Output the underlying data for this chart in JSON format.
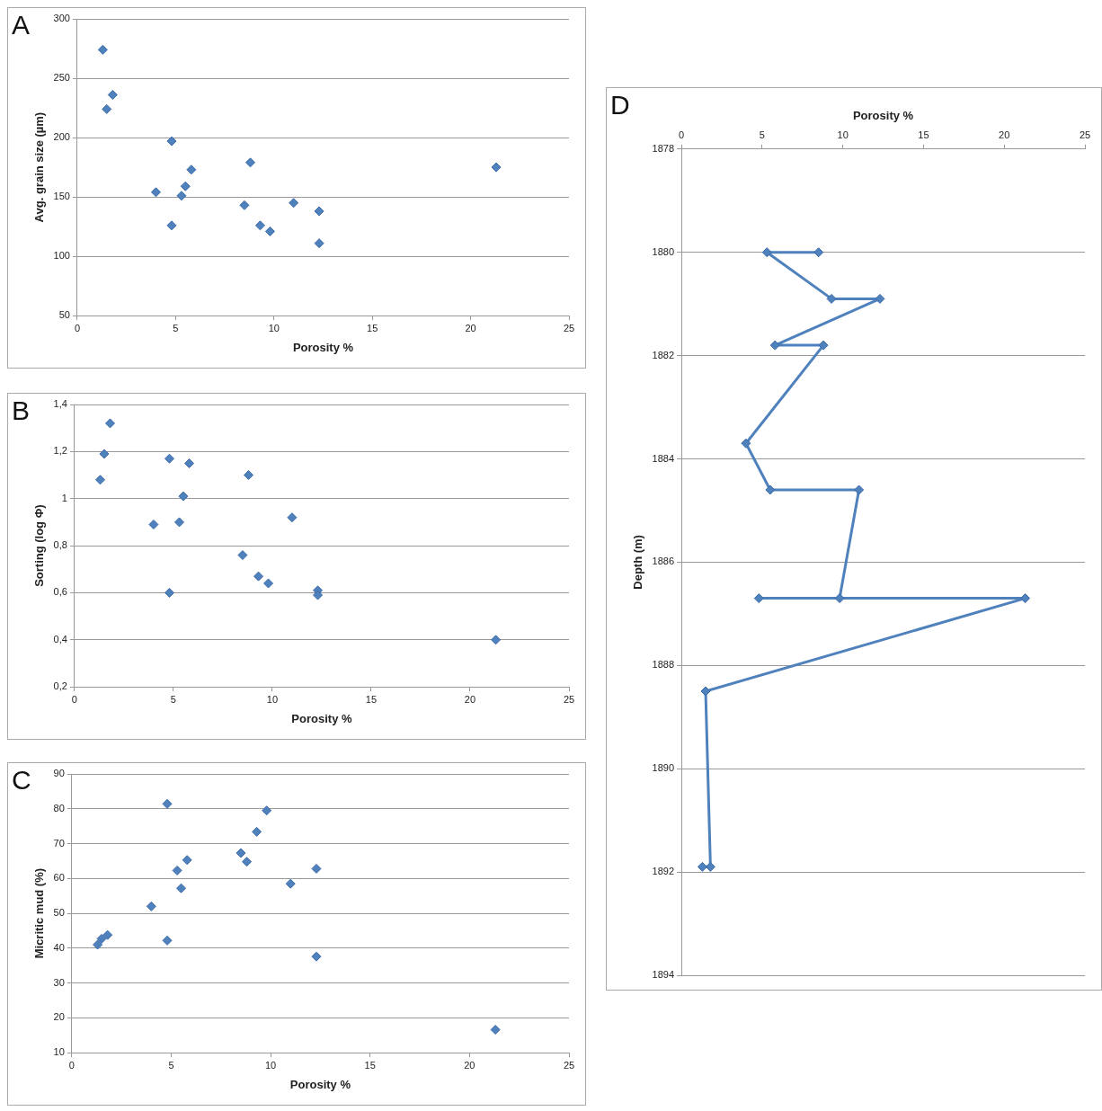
{
  "chart_data": [
    {
      "type": "scatter",
      "annotations": [
        "A"
      ],
      "xlabel": "Porosity %",
      "ylabel": "Avg. grain size (µm)",
      "xlim": [
        0,
        25
      ],
      "xticks": [
        0,
        5,
        10,
        15,
        20,
        25
      ],
      "ylim": [
        50,
        300
      ],
      "yticks": [
        50,
        100,
        150,
        200,
        250,
        300
      ],
      "grid": "y",
      "marker": "diamond",
      "series": [
        {
          "color": "#4f81bd",
          "x": [
            1.3,
            1.8,
            1.5,
            4.8,
            8.8,
            21.3,
            5.8,
            5.5,
            4.0,
            5.3,
            8.5,
            11.0,
            12.3,
            4.8,
            9.3,
            9.8,
            12.3
          ],
          "values": [
            274,
            236,
            224,
            197,
            179,
            175,
            173,
            159,
            154,
            151,
            143,
            145,
            138,
            126,
            126,
            121,
            111
          ]
        }
      ]
    },
    {
      "type": "scatter",
      "annotations": [
        "B"
      ],
      "xlabel": "Porosity %",
      "ylabel": "Sorting (log Φ)",
      "xlim": [
        0,
        25
      ],
      "xticks": [
        0,
        5,
        10,
        15,
        20,
        25
      ],
      "ylim": [
        0.2,
        1.4
      ],
      "yticks": [
        {
          "value": 0.2,
          "label": "0,2"
        },
        {
          "value": 0.4,
          "label": "0,4"
        },
        {
          "value": 0.6,
          "label": "0,6"
        },
        {
          "value": 0.8,
          "label": "0,8"
        },
        1,
        {
          "value": 1.2,
          "label": "1,2"
        },
        {
          "value": 1.4,
          "label": "1,4"
        }
      ],
      "grid": "y",
      "marker": "diamond",
      "series": [
        {
          "color": "#4f81bd",
          "x": [
            1.8,
            1.5,
            1.3,
            4.8,
            5.8,
            8.8,
            5.5,
            5.3,
            4.0,
            11.0,
            8.5,
            9.3,
            9.8,
            4.8,
            12.3,
            12.3,
            21.3
          ],
          "values": [
            1.32,
            1.19,
            1.08,
            1.17,
            1.15,
            1.1,
            1.01,
            0.9,
            0.89,
            0.92,
            0.76,
            0.67,
            0.64,
            0.6,
            0.61,
            0.59,
            0.4
          ]
        }
      ]
    },
    {
      "type": "scatter",
      "annotations": [
        "C"
      ],
      "xlabel": "Porosity %",
      "ylabel": "Micritic mud (%)",
      "xlim": [
        0,
        25
      ],
      "xticks": [
        0,
        5,
        10,
        15,
        20,
        25
      ],
      "ylim": [
        10,
        90
      ],
      "yticks": [
        10,
        20,
        30,
        40,
        50,
        60,
        70,
        80,
        90
      ],
      "grid": "y",
      "marker": "diamond",
      "series": [
        {
          "color": "#4f81bd",
          "x": [
            4.8,
            9.8,
            9.3,
            8.5,
            8.8,
            5.8,
            5.3,
            12.3,
            11.0,
            5.5,
            4.0,
            1.8,
            1.5,
            1.3,
            4.8,
            12.3,
            21.3
          ],
          "values": [
            81.4,
            79.5,
            73.4,
            67.3,
            64.8,
            65.3,
            62.3,
            62.8,
            58.5,
            57.2,
            52.0,
            43.8,
            42.7,
            41.0,
            42.2,
            37.6,
            16.6
          ]
        }
      ]
    },
    {
      "type": "line",
      "annotations": [
        "D"
      ],
      "xlabel": "Porosity %",
      "ylabel": "Depth (m)",
      "xlim": [
        0,
        25
      ],
      "xticks": [
        0,
        5,
        10,
        15,
        20,
        25
      ],
      "ylim": [
        1894,
        1878
      ],
      "yticks": [
        1878,
        1880,
        1882,
        1884,
        1886,
        1888,
        1890,
        1892,
        1894
      ],
      "grid": "y",
      "marker": "diamond",
      "line_style": "solid",
      "series": [
        {
          "color": "#4f81bd",
          "x": [
            8.5,
            5.3,
            9.3,
            12.3,
            5.8,
            8.8,
            4.0,
            5.5,
            11.0,
            9.8,
            4.8,
            21.3,
            1.5,
            1.8,
            1.3
          ],
          "values": [
            1880,
            1880,
            1880.9,
            1880.9,
            1881.8,
            1881.8,
            1883.7,
            1884.6,
            1884.6,
            1886.7,
            1886.7,
            1886.7,
            1888.5,
            1891.9,
            1891.9
          ]
        }
      ]
    }
  ]
}
